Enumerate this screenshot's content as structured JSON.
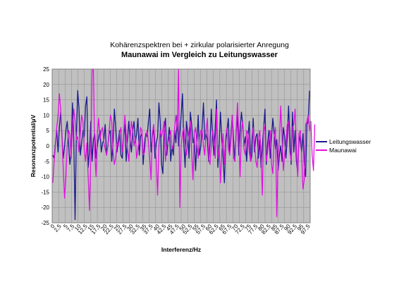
{
  "chart_data": {
    "type": "line",
    "title": "Kohärenzspektren bei + zirkular polarisierter Anregung",
    "subtitle": "Maunawai im Vergleich zu Leitungswasser",
    "xlabel": "Interferenz/Hz",
    "ylabel": "Resonanzpotential/µV",
    "ylim": [
      -25,
      25
    ],
    "yticks": [
      "25",
      "20",
      "15",
      "10",
      "5",
      "0",
      "-5",
      "-10",
      "-15",
      "-20",
      "-25"
    ],
    "xticks": [
      "0",
      "2,5",
      "5",
      "7,5",
      "10",
      "12,5",
      "15",
      "17,5",
      "20",
      "22,5",
      "25",
      "27,5",
      "30",
      "32,5",
      "35",
      "37,5",
      "40",
      "42,5",
      "45",
      "47,5",
      "50",
      "52,5",
      "55",
      "57,5",
      "60",
      "62,5",
      "65",
      "67,5",
      "70",
      "72,5",
      "75",
      "77,5",
      "80",
      "82,5",
      "85",
      "87,5",
      "90",
      "92,5",
      "95",
      "97,5"
    ],
    "grid": true,
    "legend_position": "right",
    "x_step": 0.5,
    "series": [
      {
        "name": "Leitungswasser",
        "color": "#1a1a8c",
        "values": [
          -3,
          -4,
          1,
          5,
          -2,
          6,
          11,
          3,
          -4,
          0,
          5,
          8,
          1,
          -6,
          -2,
          14,
          2,
          -24,
          4,
          18,
          12,
          -3,
          1,
          5,
          3,
          13,
          16,
          -7,
          -2,
          8,
          -5,
          2,
          4,
          -4,
          0,
          3,
          5,
          -2,
          1,
          2,
          7,
          -3,
          0,
          4,
          5,
          -5,
          1,
          12,
          6,
          -2,
          2,
          5,
          -3,
          -4,
          3,
          7,
          -5,
          2,
          8,
          2,
          -2,
          5,
          8,
          1,
          4,
          9,
          -3,
          3,
          4,
          -6,
          1,
          4,
          3,
          8,
          12,
          -2,
          3,
          6,
          -4,
          1,
          3,
          14,
          8,
          -6,
          -9,
          5,
          9,
          -3,
          2,
          6,
          -5,
          0,
          -3,
          5,
          1,
          10,
          0,
          4,
          10,
          17,
          1,
          -7,
          8,
          4,
          -4,
          11,
          7,
          1,
          3,
          -8,
          1,
          10,
          -3,
          0,
          6,
          14,
          2,
          4,
          2,
          -5,
          1,
          12,
          3,
          -3,
          6,
          15,
          -7,
          1,
          11,
          2,
          -4,
          -12,
          1,
          5,
          9,
          -3,
          4,
          10,
          2,
          -5,
          4,
          10,
          -3,
          5,
          11,
          7,
          0,
          3,
          -5,
          3,
          8,
          -5,
          -3,
          9,
          -2,
          3,
          4,
          -4,
          2,
          -7,
          0,
          6,
          12,
          -6,
          1,
          5,
          -4,
          3,
          9,
          4,
          -1,
          2,
          -8,
          -3,
          0,
          -5,
          6,
          3,
          -4,
          3,
          13,
          3,
          -6,
          11,
          -2,
          5,
          -5,
          -9,
          4,
          1,
          -2,
          4,
          -6,
          -10,
          7,
          8,
          18
        ]
      },
      {
        "name": "Maunawai",
        "color": "#e010e0",
        "values": [
          -12,
          -5,
          0,
          6,
          10,
          17,
          12,
          3,
          -8,
          -17,
          -10,
          0,
          5,
          4,
          -4,
          6,
          12,
          8,
          2,
          3,
          -2,
          4,
          10,
          8,
          -1,
          -5,
          1,
          -10,
          -21,
          -3,
          25,
          25,
          -2,
          -10,
          4,
          9,
          2,
          5,
          6,
          1,
          -1,
          -3,
          0,
          5,
          10,
          8,
          -2,
          -6,
          -4,
          1,
          0,
          4,
          6,
          -2,
          3,
          10,
          4,
          -1,
          -5,
          2,
          8,
          5,
          0,
          3,
          -4,
          -1,
          2,
          6,
          5,
          -3,
          -2,
          3,
          5,
          1,
          -4,
          -11,
          4,
          7,
          1,
          -5,
          -16,
          0,
          5,
          3,
          5,
          8,
          -5,
          0,
          1,
          3,
          5,
          -1,
          0,
          6,
          10,
          5,
          25,
          -20,
          0,
          4,
          6,
          1,
          -3,
          2,
          5,
          8,
          -2,
          -11,
          4,
          6,
          1,
          -4,
          3,
          5,
          5,
          0,
          -3,
          5,
          9,
          -4,
          -6,
          0,
          5,
          3,
          -4,
          12,
          -4,
          -1,
          -12,
          -2,
          4,
          -6,
          3,
          6,
          -1,
          -3,
          2,
          10,
          -4,
          -5,
          5,
          14,
          3,
          -10,
          5,
          8,
          -1,
          -3,
          5,
          4,
          -2,
          -5,
          3,
          6,
          1,
          -5,
          -7,
          2,
          5,
          -3,
          -16,
          7,
          5,
          -5,
          -2,
          2,
          5,
          -6,
          -9,
          3,
          6,
          -23,
          -4,
          2,
          13,
          3,
          -8,
          -3,
          1,
          7,
          8,
          -2,
          -5,
          6,
          7,
          12,
          -2,
          -10,
          4,
          5,
          -3,
          -14,
          -11,
          7,
          8,
          10,
          5,
          8,
          -3,
          -8,
          7
        ]
      }
    ]
  }
}
